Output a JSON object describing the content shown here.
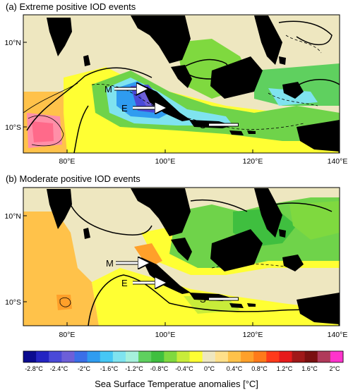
{
  "panels": [
    {
      "id": "a",
      "title": "(a) Extreme positive IOD events",
      "lat_labels": [
        "10°N",
        "10°S"
      ],
      "lon_labels": [
        "80°E",
        "100°E",
        "120°E",
        "140°E"
      ],
      "markers": [
        {
          "label": "M"
        },
        {
          "label": "E"
        },
        {
          "label": "S"
        }
      ]
    },
    {
      "id": "b",
      "title": "(b) Moderate positive IOD events",
      "lat_labels": [
        "10°N",
        "10°S"
      ],
      "lon_labels": [
        "80°E",
        "100°E",
        "120°E",
        "140°E"
      ],
      "markers": [
        {
          "label": "M"
        },
        {
          "label": "E"
        },
        {
          "label": "S"
        }
      ]
    }
  ],
  "colorbar": {
    "title": "Sea Surface Temperatue anomalies [°C]",
    "tick_labels": [
      "-2.8°C",
      "-2.4°C",
      "-2°C",
      "-1.6°C",
      "-1.2°C",
      "-0.8°C",
      "-0.4°C",
      "0°C",
      "0.4°C",
      "0.8°C",
      "1.2°C",
      "1.6°C",
      "2°C"
    ],
    "colors": [
      "#0b0b8f",
      "#2424c2",
      "#4a4ad8",
      "#6d5fd8",
      "#3a6fe8",
      "#2f9cf0",
      "#45c7f5",
      "#7fe3ef",
      "#a6f0dc",
      "#5fd05f",
      "#3fbf3f",
      "#7fd93f",
      "#c8ec3a",
      "#ffff33",
      "#eee7c0",
      "#ffe08a",
      "#ffc24a",
      "#ffa02a",
      "#ff7a1a",
      "#ff3a1a",
      "#e61a1a",
      "#a01818",
      "#7a1010",
      "#b03a5a",
      "#ff33cc"
    ]
  }
}
